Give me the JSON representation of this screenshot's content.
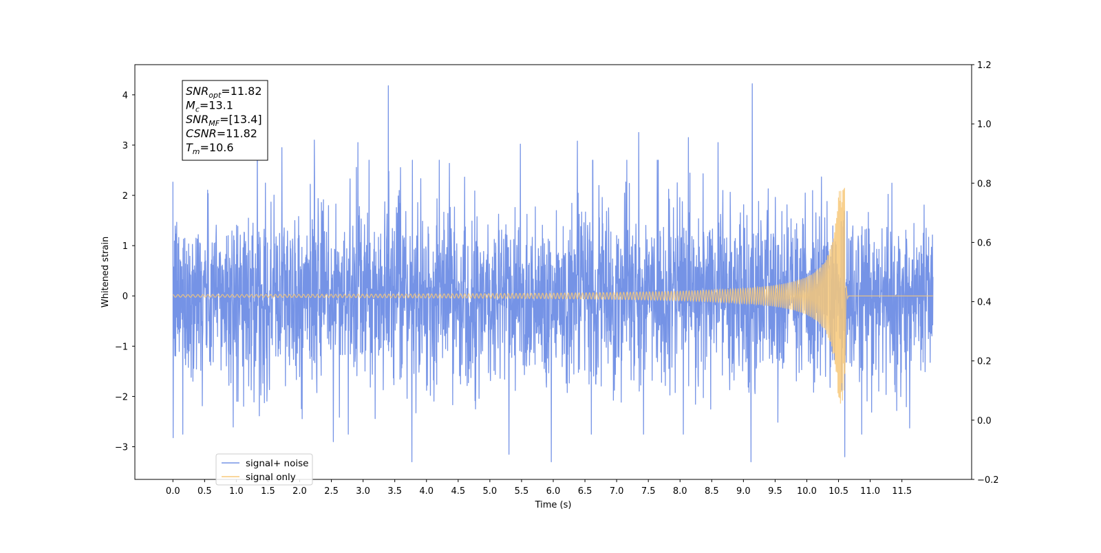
{
  "chart_data": {
    "type": "line",
    "title": "",
    "xlabel": "Time (s)",
    "ylabel": "Whitened strain",
    "xlim": [
      -0.6,
      12.6
    ],
    "ylim": [
      -3.65,
      4.6
    ],
    "y2lim": [
      -0.2,
      1.2
    ],
    "x_ticks": [
      "0.0",
      "0.5",
      "1.0",
      "1.5",
      "2.0",
      "2.5",
      "3.0",
      "3.5",
      "4.0",
      "4.5",
      "5.0",
      "5.5",
      "6.0",
      "6.5",
      "7.0",
      "7.5",
      "8.0",
      "8.5",
      "9.0",
      "9.5",
      "10.0",
      "10.5",
      "11.0",
      "11.5"
    ],
    "y_ticks": [
      "4",
      "3",
      "2",
      "1",
      "0",
      "−1",
      "−2",
      "−3"
    ],
    "y2_ticks": [
      "1.2",
      "1.0",
      "0.8",
      "0.6",
      "0.4",
      "0.2",
      "0.0",
      "−0.2"
    ],
    "grid": false,
    "legend": {
      "placement": "lower-left",
      "entries": [
        {
          "label": "signal+ noise",
          "color": "#7593e6"
        },
        {
          "label": "signal only",
          "color": "#f7c879"
        }
      ]
    },
    "series": [
      {
        "name": "signal+ noise",
        "color": "#7593e6",
        "x_range": [
          0.0,
          11.99
        ],
        "typical_amplitude": 1.4,
        "peaks": [
          {
            "x": 0.0,
            "y": 2.27
          },
          {
            "x": 0.0,
            "y": -2.82
          },
          {
            "x": 1.33,
            "y": 3.2
          },
          {
            "x": 1.72,
            "y": 2.95
          },
          {
            "x": 2.23,
            "y": 3.1
          },
          {
            "x": 2.53,
            "y": -2.9
          },
          {
            "x": 2.92,
            "y": 3.05
          },
          {
            "x": 3.4,
            "y": 4.18
          },
          {
            "x": 3.77,
            "y": -3.3
          },
          {
            "x": 5.3,
            "y": -3.15
          },
          {
            "x": 5.48,
            "y": 3.02
          },
          {
            "x": 5.97,
            "y": -3.3
          },
          {
            "x": 6.38,
            "y": 3.08
          },
          {
            "x": 7.35,
            "y": 3.25
          },
          {
            "x": 8.13,
            "y": 3.15
          },
          {
            "x": 8.6,
            "y": 3.05
          },
          {
            "x": 9.14,
            "y": 4.22
          },
          {
            "x": 9.12,
            "y": -3.3
          },
          {
            "x": 10.6,
            "y": -3.2
          }
        ]
      },
      {
        "name": "signal only",
        "color": "#f7c879",
        "merger_time": 10.6,
        "start_time": 0.0,
        "end_time": 11.99,
        "initial_amplitude": 0.025,
        "peak_max": 2.15,
        "peak_min": -1.55
      }
    ],
    "annotation": {
      "lines": [
        {
          "base": "SNR",
          "sub": "opt",
          "value": "=11.82"
        },
        {
          "base": "M",
          "sub": "c",
          "value": "=13.1"
        },
        {
          "base": "SNR",
          "sub": "MF",
          "value": "=[13.4]"
        },
        {
          "base": "CSNR",
          "sub": "",
          "value": "=11.82"
        },
        {
          "base": "T",
          "sub": "m",
          "value": "=10.6"
        }
      ]
    }
  }
}
